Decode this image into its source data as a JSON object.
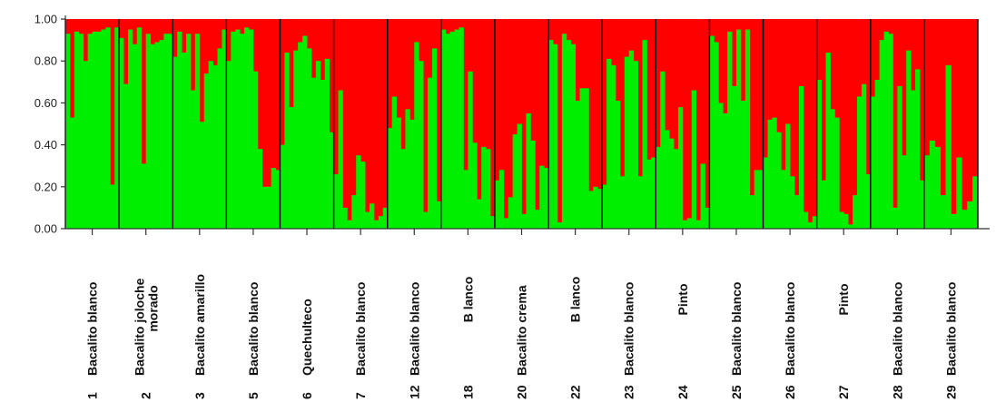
{
  "chart_data": {
    "type": "bar",
    "subtype": "stacked-proportion (STRUCTURE, K=2)",
    "ylim": [
      0,
      1
    ],
    "yticks": [
      "0.00",
      "0.20",
      "0.40",
      "0.60",
      "0.80",
      "1.00"
    ],
    "colors": {
      "cluster_1": "#00ee00",
      "cluster_2": "#ff0000",
      "separator": "#000000",
      "axis": "#333333"
    },
    "series": [
      {
        "key": "cluster_1",
        "color": "#00ee00"
      },
      {
        "key": "cluster_2",
        "color": "#ff0000"
      }
    ],
    "populations": [
      {
        "id": "1",
        "label": "Bacalito blanco",
        "values": [
          0.93,
          0.53,
          0.94,
          0.93,
          0.8,
          0.93,
          0.94,
          0.94,
          0.95,
          0.96,
          0.21,
          0.96
        ]
      },
      {
        "id": "2",
        "label": "Bacalito joloche morado",
        "values": [
          0.91,
          0.69,
          0.95,
          0.88,
          0.96,
          0.31,
          0.93,
          0.88,
          0.89,
          0.9,
          0.93,
          0.93
        ]
      },
      {
        "id": "3",
        "label": "Bacalito amarillo",
        "values": [
          0.82,
          0.94,
          0.84,
          0.93,
          0.66,
          0.93,
          0.51,
          0.74,
          0.8,
          0.78,
          0.86,
          0.95
        ]
      },
      {
        "id": "5",
        "label": "Bacalito blanco",
        "values": [
          0.8,
          0.94,
          0.95,
          0.93,
          0.96,
          0.95,
          0.75,
          0.38,
          0.2,
          0.2,
          0.29,
          0.28
        ]
      },
      {
        "id": "6",
        "label": "Quechulteco",
        "values": [
          0.4,
          0.84,
          0.58,
          0.85,
          0.89,
          0.92,
          0.86,
          0.72,
          0.8,
          0.71,
          0.81,
          0.46
        ]
      },
      {
        "id": "7",
        "label": "Bacalito blanco",
        "values": [
          0.26,
          0.66,
          0.1,
          0.04,
          0.16,
          0.35,
          0.32,
          0.08,
          0.12,
          0.04,
          0.06,
          0.1
        ]
      },
      {
        "id": "12",
        "label": "Bacalito blanco",
        "values": [
          0.48,
          0.63,
          0.53,
          0.38,
          0.57,
          0.52,
          0.89,
          0.8,
          0.08,
          0.72,
          0.86,
          0.13
        ]
      },
      {
        "id": "18",
        "label": "B lanco",
        "values": [
          0.95,
          0.93,
          0.94,
          0.95,
          0.96,
          0.28,
          0.75,
          0.41,
          0.14,
          0.39,
          0.38,
          0.06
        ]
      },
      {
        "id": "20",
        "label": "Bacalito crema",
        "values": [
          0.23,
          0.28,
          0.05,
          0.15,
          0.45,
          0.5,
          0.07,
          0.55,
          0.42,
          0.09,
          0.3,
          0.29
        ]
      },
      {
        "id": "22",
        "label": "B lanco",
        "values": [
          0.9,
          0.88,
          0.03,
          0.93,
          0.9,
          0.88,
          0.61,
          0.67,
          0.67,
          0.18,
          0.2,
          0.19
        ]
      },
      {
        "id": "23",
        "label": "Bacalito blanco",
        "values": [
          0.21,
          0.81,
          0.78,
          0.61,
          0.25,
          0.82,
          0.85,
          0.8,
          0.25,
          0.9,
          0.33,
          0.34
        ]
      },
      {
        "id": "24",
        "label": "Pinto",
        "values": [
          0.39,
          0.75,
          0.47,
          0.43,
          0.38,
          0.58,
          0.04,
          0.05,
          0.66,
          0.04,
          0.31,
          0.1
        ]
      },
      {
        "id": "25",
        "label": "Bacalito blanco",
        "values": [
          0.92,
          0.89,
          0.6,
          0.55,
          0.94,
          0.68,
          0.95,
          0.61,
          0.95,
          0.16,
          0.28,
          0.28
        ]
      },
      {
        "id": "26",
        "label": "Bacalito blanco",
        "values": [
          0.34,
          0.52,
          0.53,
          0.46,
          0.28,
          0.5,
          0.25,
          0.16,
          0.68,
          0.08,
          0.03,
          0.06
        ]
      },
      {
        "id": "27",
        "label": "Pinto",
        "values": [
          0.71,
          0.23,
          0.84,
          0.57,
          0.53,
          0.08,
          0.07,
          0.02,
          0.16,
          0.63,
          0.69,
          0.26
        ]
      },
      {
        "id": "28",
        "label": "Bacalito blanco",
        "values": [
          0.63,
          0.71,
          0.9,
          0.94,
          0.93,
          0.1,
          0.68,
          0.35,
          0.85,
          0.66,
          0.76,
          0.23
        ]
      },
      {
        "id": "29",
        "label": "Bacalito blanco",
        "values": [
          0.35,
          0.42,
          0.39,
          0.16,
          0.78,
          0.07,
          0.34,
          0.09,
          0.13,
          0.25
        ]
      }
    ],
    "grid": false,
    "legend": "none"
  }
}
